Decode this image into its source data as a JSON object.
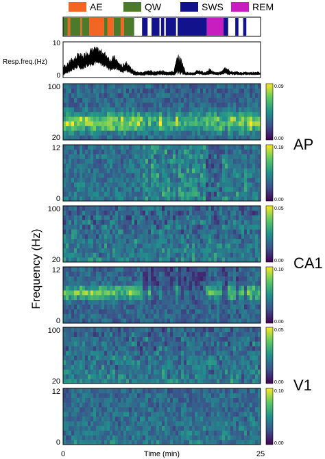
{
  "chart_data": {
    "type": "heatmap",
    "title": "",
    "xlabel": "Time (min)",
    "xlim": [
      0,
      25
    ],
    "x_ticks": [
      "0",
      "25"
    ],
    "shared_ylabel": "Frequency (Hz)",
    "legend": {
      "placement": "top",
      "entries": [
        {
          "name": "AE",
          "color": "#f26522"
        },
        {
          "name": "QW",
          "color": "#4a7a2a"
        },
        {
          "name": "SWS",
          "color": "#12128c"
        },
        {
          "name": "REM",
          "color": "#c81ec0"
        }
      ]
    },
    "hypnogram": {
      "type": "state-raster",
      "segments": [
        {
          "state": "QW",
          "start": 0.0,
          "end": 0.6
        },
        {
          "state": "AE",
          "start": 0.6,
          "end": 0.9
        },
        {
          "state": "QW",
          "start": 0.9,
          "end": 2.2
        },
        {
          "state": "AE",
          "start": 2.2,
          "end": 2.4
        },
        {
          "state": "QW",
          "start": 2.4,
          "end": 3.3
        },
        {
          "state": "AE",
          "start": 3.3,
          "end": 5.2
        },
        {
          "state": "QW",
          "start": 5.2,
          "end": 5.6
        },
        {
          "state": "AE",
          "start": 5.6,
          "end": 6.4
        },
        {
          "state": "QW",
          "start": 6.4,
          "end": 7.3
        },
        {
          "state": "AE",
          "start": 7.3,
          "end": 7.7
        },
        {
          "state": "QW",
          "start": 7.7,
          "end": 9.0
        },
        {
          "state": "SWS",
          "start": 10.0,
          "end": 10.7
        },
        {
          "state": "SWS",
          "start": 11.2,
          "end": 12.2
        },
        {
          "state": "SWS",
          "start": 12.4,
          "end": 12.8
        },
        {
          "state": "SWS",
          "start": 13.0,
          "end": 14.3
        },
        {
          "state": "SWS",
          "start": 14.5,
          "end": 18.2
        },
        {
          "state": "REM",
          "start": 18.2,
          "end": 20.3
        },
        {
          "state": "SWS",
          "start": 20.3,
          "end": 20.9
        },
        {
          "state": "SWS",
          "start": 21.8,
          "end": 22.2
        },
        {
          "state": "SWS",
          "start": 22.8,
          "end": 23.2
        }
      ]
    },
    "resp_trace": {
      "type": "line",
      "ylabel": "Resp.freq.(Hz)",
      "ylim": [
        0,
        10
      ],
      "y_ticks": [
        "0",
        "10"
      ],
      "x": [
        0,
        0.5,
        1,
        1.5,
        2,
        2.5,
        3,
        3.5,
        4,
        4.5,
        5,
        5.5,
        6,
        6.5,
        7,
        7.5,
        8,
        8.5,
        9,
        9.5,
        10,
        10.5,
        11,
        11.5,
        12,
        12.5,
        13,
        13.5,
        14,
        14.5,
        15,
        15.5,
        16,
        16.5,
        17,
        17.5,
        18,
        18.5,
        19,
        19.5,
        20,
        20.5,
        21,
        21.5,
        22,
        22.5,
        23,
        23.5,
        24,
        24.5,
        25
      ],
      "y_low": [
        0.5,
        0.8,
        1.5,
        2.0,
        2.2,
        2.0,
        2.8,
        3.0,
        3.5,
        3.2,
        3.0,
        2.5,
        1.5,
        2.0,
        1.8,
        1.0,
        1.5,
        1.0,
        0.5,
        0.4,
        0.4,
        0.4,
        0.5,
        0.4,
        0.5,
        0.5,
        0.4,
        0.5,
        0.4,
        0.5,
        0.5,
        0.5,
        0.5,
        0.5,
        0.6,
        0.6,
        0.5,
        0.6,
        0.7,
        0.5,
        0.6,
        0.8,
        0.6,
        0.5,
        0.6,
        0.5,
        0.6,
        0.5,
        0.5,
        0.6,
        0.5
      ],
      "y_high": [
        3.5,
        4.0,
        5.5,
        6.0,
        7.5,
        6.5,
        8.0,
        8.5,
        9.0,
        8.5,
        8.0,
        7.0,
        5.5,
        6.5,
        4.5,
        3.5,
        5.0,
        3.0,
        2.0,
        1.5,
        1.5,
        1.8,
        2.0,
        1.6,
        1.8,
        2.0,
        1.5,
        1.8,
        1.6,
        6.8,
        5.5,
        1.5,
        1.4,
        1.2,
        2.2,
        1.8,
        1.4,
        2.5,
        1.6,
        1.4,
        1.6,
        2.8,
        2.2,
        1.5,
        1.6,
        1.4,
        1.5,
        1.4,
        1.5,
        1.6,
        1.3
      ]
    },
    "spectrograms": [
      {
        "region": "AP",
        "band": "high",
        "ylim": [
          20,
          100
        ],
        "y_ticks": [
          "20",
          "100"
        ],
        "colorbar": {
          "min": "0.00",
          "max": "0.09"
        }
      },
      {
        "region": "AP",
        "band": "low",
        "ylim": [
          0,
          12
        ],
        "y_ticks": [
          "0",
          "12"
        ],
        "colorbar": {
          "min": "0.00",
          "max": "0.18"
        }
      },
      {
        "region": "CA1",
        "band": "high",
        "ylim": [
          20,
          100
        ],
        "y_ticks": [
          "20",
          "100"
        ],
        "colorbar": {
          "min": "0.00",
          "max": "0.05"
        }
      },
      {
        "region": "CA1",
        "band": "low",
        "ylim": [
          0,
          12
        ],
        "y_ticks": [
          "0",
          "12"
        ],
        "colorbar": {
          "min": "0.00",
          "max": "0.10"
        }
      },
      {
        "region": "V1",
        "band": "high",
        "ylim": [
          20,
          100
        ],
        "y_ticks": [
          "20",
          "100"
        ],
        "colorbar": {
          "min": "0.00",
          "max": "0.05"
        }
      },
      {
        "region": "V1",
        "band": "low",
        "ylim": [
          0,
          12
        ],
        "y_ticks": [
          "0",
          "12"
        ],
        "colorbar": {
          "min": "0.00",
          "max": "0.10"
        }
      }
    ],
    "region_labels": [
      "AP",
      "CA1",
      "V1"
    ],
    "colormap": [
      "#440154",
      "#3b528b",
      "#21908d",
      "#5dc963",
      "#fde725"
    ]
  }
}
